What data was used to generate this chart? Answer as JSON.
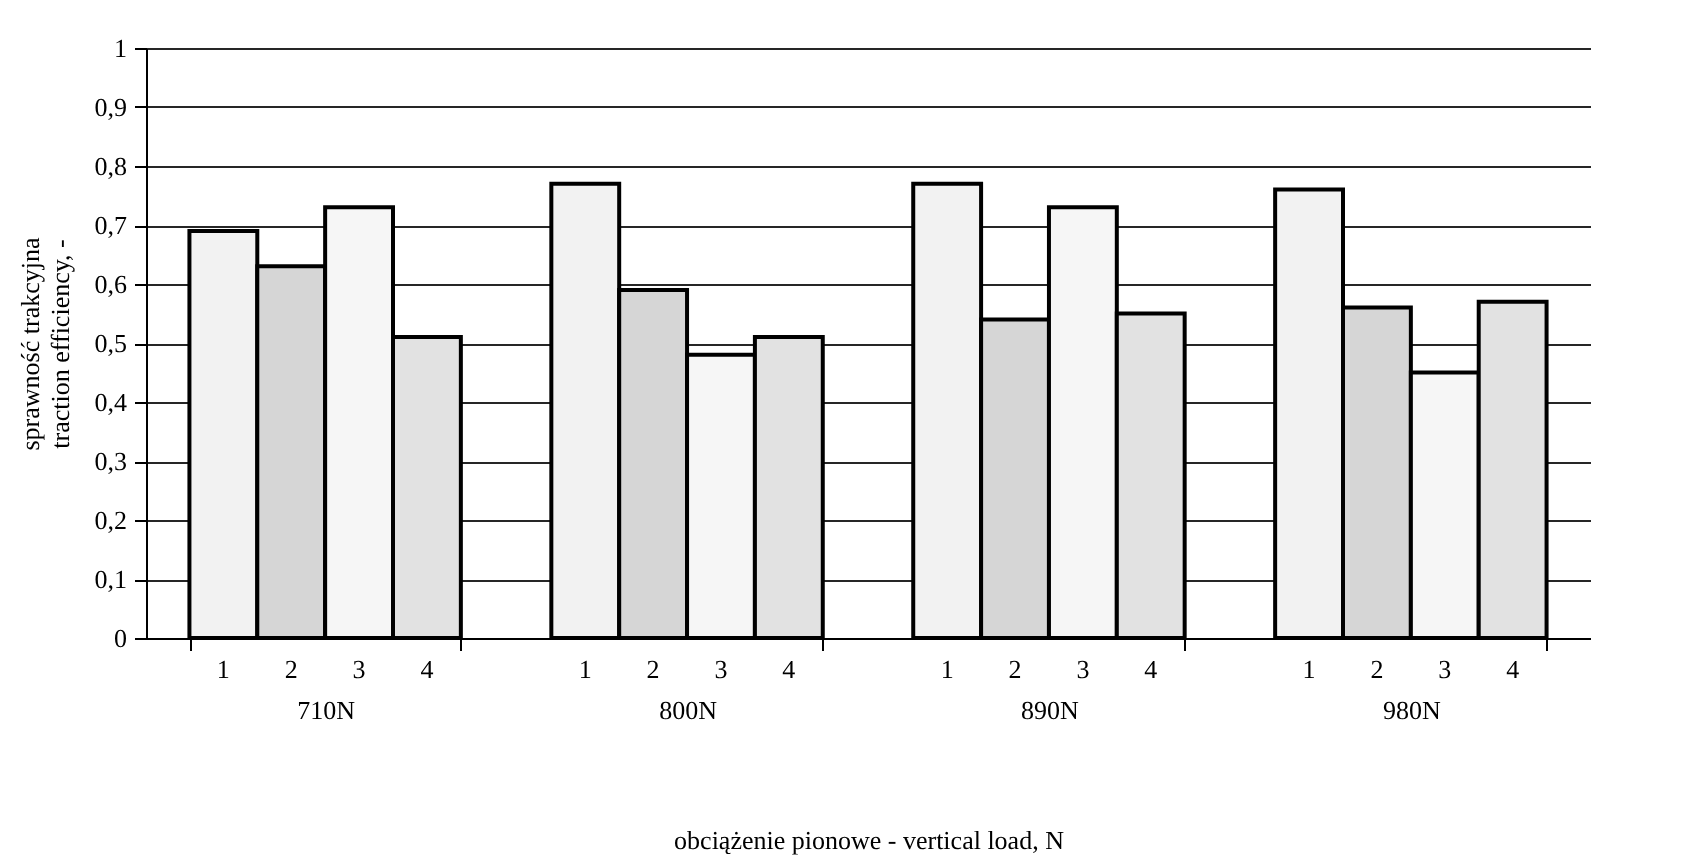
{
  "chart_data": {
    "type": "bar",
    "xlabel": "obciążenie pionowe - vertical load, N",
    "ylabel": "sprawność trakcyjna\ntraction efficiency, -",
    "categories": [
      "710N",
      "800N",
      "890N",
      "980N"
    ],
    "series": [
      {
        "name": "1",
        "color": "#f2f2f2",
        "values": [
          0.69,
          0.77,
          0.77,
          0.76
        ]
      },
      {
        "name": "2",
        "color": "#d6d6d6",
        "values": [
          0.63,
          0.59,
          0.54,
          0.56
        ]
      },
      {
        "name": "3",
        "color": "#f6f6f6",
        "values": [
          0.73,
          0.48,
          0.73,
          0.45
        ]
      },
      {
        "name": "4",
        "color": "#e2e2e2",
        "values": [
          0.51,
          0.51,
          0.55,
          0.57
        ]
      }
    ],
    "ylim": [
      0,
      1
    ],
    "yticks": [
      0,
      {
        "value": 0.1,
        "label": "0,1"
      },
      {
        "value": 0.2,
        "label": "0,2"
      },
      {
        "value": 0.3,
        "label": "0,3"
      },
      {
        "value": 0.4,
        "label": "0,4"
      },
      {
        "value": 0.5,
        "label": "0,5"
      },
      {
        "value": 0.6,
        "label": "0,6"
      },
      {
        "value": 0.7,
        "label": "0,7"
      },
      {
        "value": 0.8,
        "label": "0,8"
      },
      {
        "value": 0.9,
        "label": "0,9"
      },
      1
    ],
    "grid": "y",
    "legend": false
  }
}
